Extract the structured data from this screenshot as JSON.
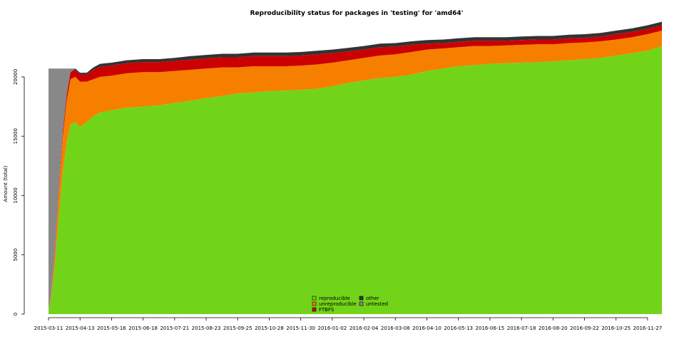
{
  "chart_data": {
    "type": "area",
    "stacked": true,
    "title": "Reproducibility status for packages in 'testing' for 'amd64'",
    "xlabel": "",
    "ylabel": "Amount (total)",
    "ylim": [
      0,
      24500
    ],
    "yticks": [
      0,
      5000,
      10000,
      15000,
      20000
    ],
    "xlim": [
      "2015-03-11",
      "2016-12-12"
    ],
    "xticks": [
      "2015-03-11",
      "2015-04-13",
      "2015-05-16",
      "2015-06-18",
      "2015-07-21",
      "2015-08-23",
      "2015-09-25",
      "2015-10-28",
      "2015-11-30",
      "2016-01-02",
      "2016-02-04",
      "2016-03-08",
      "2016-04-10",
      "2016-05-13",
      "2016-06-15",
      "2016-07-18",
      "2016-08-20",
      "2016-09-22",
      "2016-10-25",
      "2016-11-27"
    ],
    "grid": false,
    "legend_position": "bottom-center",
    "x": [
      "2015-03-11",
      "2015-03-14",
      "2015-03-18",
      "2015-03-22",
      "2015-03-26",
      "2015-03-30",
      "2015-04-03",
      "2015-04-08",
      "2015-04-13",
      "2015-04-20",
      "2015-04-27",
      "2015-05-04",
      "2015-05-16",
      "2015-06-01",
      "2015-06-18",
      "2015-07-05",
      "2015-07-21",
      "2015-08-07",
      "2015-08-23",
      "2015-09-09",
      "2015-09-25",
      "2015-10-12",
      "2015-10-28",
      "2015-11-14",
      "2015-11-30",
      "2015-12-17",
      "2016-01-02",
      "2016-01-19",
      "2016-02-04",
      "2016-02-21",
      "2016-03-08",
      "2016-03-25",
      "2016-04-10",
      "2016-04-27",
      "2016-05-13",
      "2016-05-30",
      "2016-06-15",
      "2016-07-02",
      "2016-07-18",
      "2016-08-04",
      "2016-08-20",
      "2016-09-06",
      "2016-09-22",
      "2016-10-09",
      "2016-10-25",
      "2016-11-11",
      "2016-11-27",
      "2016-12-12"
    ],
    "series": [
      {
        "name": "reproducible",
        "color": "#72d418",
        "values": [
          300,
          1500,
          4500,
          8500,
          12000,
          14500,
          16000,
          16200,
          15800,
          16200,
          16700,
          17000,
          17200,
          17400,
          17500,
          17600,
          17800,
          18000,
          18200,
          18400,
          18600,
          18700,
          18800,
          18850,
          18900,
          19000,
          19200,
          19500,
          19700,
          19900,
          20000,
          20200,
          20500,
          20700,
          20900,
          21000,
          21100,
          21150,
          21200,
          21250,
          21300,
          21400,
          21500,
          21600,
          21800,
          22000,
          22200,
          22600
        ]
      },
      {
        "name": "unreproducible",
        "color": "#f67f00",
        "values": [
          50,
          300,
          1000,
          2000,
          3000,
          3500,
          3800,
          3800,
          3800,
          3400,
          3100,
          3000,
          2900,
          2900,
          2900,
          2800,
          2700,
          2600,
          2500,
          2400,
          2200,
          2200,
          2100,
          2050,
          2050,
          2050,
          2000,
          1900,
          1900,
          1900,
          1900,
          1900,
          1800,
          1700,
          1600,
          1600,
          1500,
          1500,
          1500,
          1500,
          1450,
          1450,
          1400,
          1400,
          1350,
          1350,
          1400,
          1300
        ]
      },
      {
        "name": "FTBFS",
        "color": "#cc0000",
        "values": [
          20,
          100,
          200,
          300,
          400,
          500,
          600,
          600,
          600,
          600,
          800,
          850,
          850,
          850,
          850,
          850,
          850,
          850,
          850,
          850,
          850,
          850,
          850,
          850,
          850,
          850,
          800,
          750,
          700,
          700,
          650,
          600,
          500,
          450,
          450,
          450,
          450,
          400,
          400,
          400,
          400,
          400,
          400,
          400,
          450,
          450,
          450,
          450
        ]
      },
      {
        "name": "other",
        "color": "#333333",
        "values": [
          0,
          0,
          0,
          0,
          0,
          0,
          0,
          100,
          150,
          150,
          200,
          250,
          250,
          250,
          250,
          250,
          250,
          300,
          300,
          300,
          300,
          300,
          300,
          300,
          300,
          300,
          300,
          300,
          300,
          300,
          300,
          300,
          300,
          300,
          300,
          300,
          300,
          300,
          300,
          300,
          300,
          300,
          300,
          300,
          300,
          300,
          300,
          300
        ]
      },
      {
        "name": "untested",
        "color": "#888888",
        "values": [
          20330,
          18800,
          15000,
          9900,
          5300,
          2200,
          300,
          0,
          0,
          0,
          0,
          0,
          0,
          0,
          0,
          0,
          0,
          0,
          0,
          0,
          0,
          0,
          0,
          0,
          0,
          0,
          0,
          0,
          0,
          0,
          0,
          0,
          0,
          0,
          0,
          0,
          0,
          0,
          0,
          0,
          0,
          0,
          0,
          0,
          0,
          0,
          0,
          0
        ]
      }
    ],
    "legend_order": [
      "reproducible",
      "unreproducible",
      "FTBFS",
      "other",
      "untested"
    ]
  }
}
